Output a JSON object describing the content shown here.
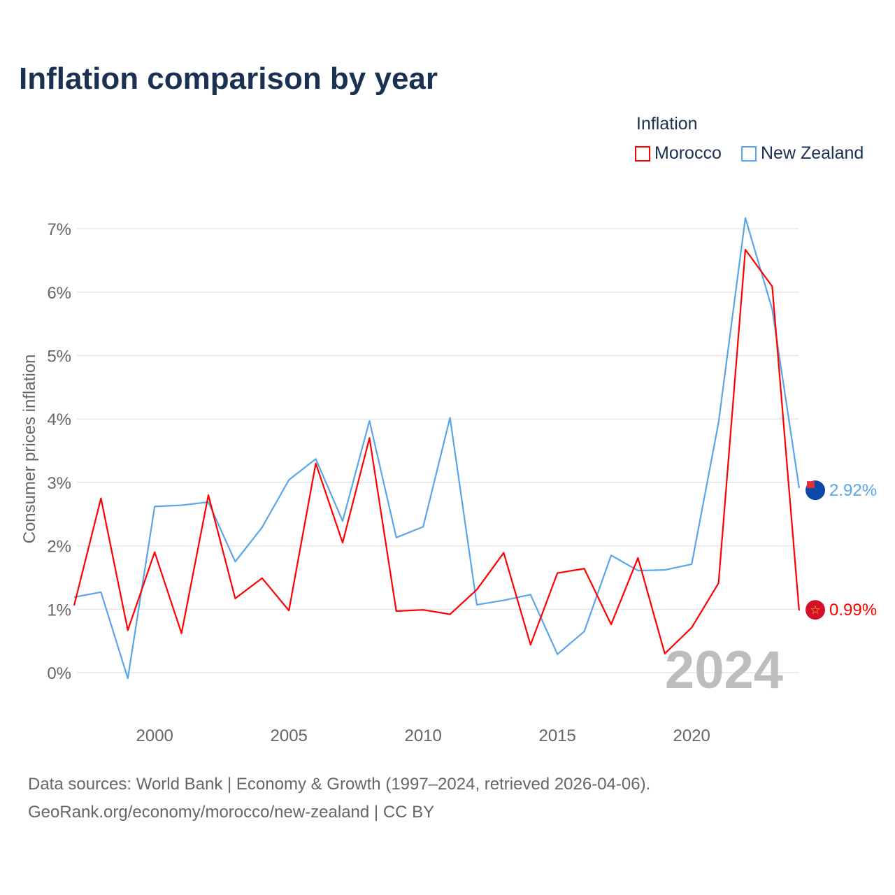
{
  "title": "Inflation comparison by year",
  "footer": {
    "line1": "Data sources: World Bank | Economy & Growth (1997–2024, retrieved 2026-04-06).",
    "line2": "GeoRank.org/economy/morocco/new-zealand | CC BY"
  },
  "chart_data": {
    "type": "line",
    "title": "Inflation comparison by year",
    "ylabel": "Consumer prices inflation",
    "xlabel": "",
    "legend_title": "Inflation",
    "legend_position": "top-right",
    "year_watermark": "2024",
    "ylim": [
      -0.5,
      7.5
    ],
    "yticks": [
      0,
      1,
      2,
      3,
      4,
      5,
      6,
      7
    ],
    "ytick_labels": [
      "0%",
      "1%",
      "2%",
      "3%",
      "4%",
      "5%",
      "6%",
      "7%"
    ],
    "xticks": [
      2000,
      2005,
      2010,
      2015,
      2020
    ],
    "xtick_labels": [
      "2000",
      "2005",
      "2010",
      "2015",
      "2020"
    ],
    "grid": true,
    "x": [
      1997,
      1998,
      1999,
      2000,
      2001,
      2002,
      2003,
      2004,
      2005,
      2006,
      2007,
      2008,
      2009,
      2010,
      2011,
      2012,
      2013,
      2014,
      2015,
      2016,
      2017,
      2018,
      2019,
      2020,
      2021,
      2022,
      2023,
      2024
    ],
    "series": [
      {
        "name": "Morocco",
        "color": "#ff0000",
        "end_label": "0.99%",
        "flag": "morocco-flag",
        "values": [
          1.06,
          2.75,
          0.67,
          1.9,
          0.62,
          2.8,
          1.17,
          1.49,
          0.98,
          3.3,
          2.05,
          3.7,
          0.97,
          0.99,
          0.92,
          1.31,
          1.89,
          0.44,
          1.57,
          1.64,
          0.76,
          1.81,
          0.3,
          0.71,
          1.41,
          6.67,
          6.09,
          0.99
        ]
      },
      {
        "name": "New Zealand",
        "color": "#5aa5ea",
        "end_label": "2.92%",
        "flag": "new-zealand-flag",
        "values": [
          1.19,
          1.27,
          -0.09,
          2.62,
          2.64,
          2.69,
          1.75,
          2.29,
          3.04,
          3.37,
          2.39,
          3.97,
          2.13,
          2.3,
          4.02,
          1.07,
          1.14,
          1.23,
          0.29,
          0.65,
          1.85,
          1.61,
          1.62,
          1.71,
          3.94,
          7.17,
          5.73,
          2.92
        ]
      }
    ]
  }
}
